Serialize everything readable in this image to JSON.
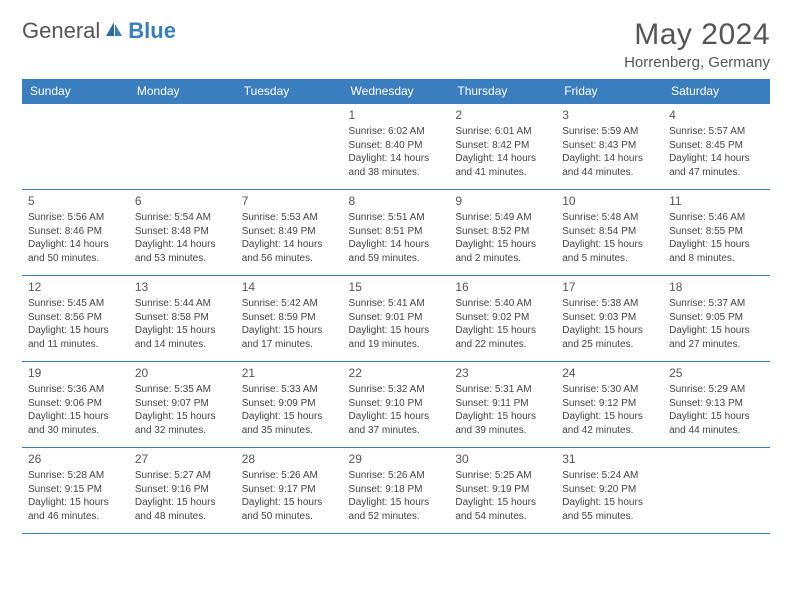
{
  "brand": {
    "word1": "General",
    "word2": "Blue"
  },
  "title": "May 2024",
  "location": "Horrenberg, Germany",
  "colors": {
    "accent": "#3a7ebf",
    "text": "#555555",
    "bg": "#ffffff"
  },
  "weekdays": [
    "Sunday",
    "Monday",
    "Tuesday",
    "Wednesday",
    "Thursday",
    "Friday",
    "Saturday"
  ],
  "grid": {
    "cols": 7,
    "rows": 5,
    "first_weekday_index": 3,
    "days_in_month": 31
  },
  "days": [
    {
      "n": 1,
      "sunrise": "6:02 AM",
      "sunset": "8:40 PM",
      "dl_h": 14,
      "dl_m": 38
    },
    {
      "n": 2,
      "sunrise": "6:01 AM",
      "sunset": "8:42 PM",
      "dl_h": 14,
      "dl_m": 41
    },
    {
      "n": 3,
      "sunrise": "5:59 AM",
      "sunset": "8:43 PM",
      "dl_h": 14,
      "dl_m": 44
    },
    {
      "n": 4,
      "sunrise": "5:57 AM",
      "sunset": "8:45 PM",
      "dl_h": 14,
      "dl_m": 47
    },
    {
      "n": 5,
      "sunrise": "5:56 AM",
      "sunset": "8:46 PM",
      "dl_h": 14,
      "dl_m": 50
    },
    {
      "n": 6,
      "sunrise": "5:54 AM",
      "sunset": "8:48 PM",
      "dl_h": 14,
      "dl_m": 53
    },
    {
      "n": 7,
      "sunrise": "5:53 AM",
      "sunset": "8:49 PM",
      "dl_h": 14,
      "dl_m": 56
    },
    {
      "n": 8,
      "sunrise": "5:51 AM",
      "sunset": "8:51 PM",
      "dl_h": 14,
      "dl_m": 59
    },
    {
      "n": 9,
      "sunrise": "5:49 AM",
      "sunset": "8:52 PM",
      "dl_h": 15,
      "dl_m": 2
    },
    {
      "n": 10,
      "sunrise": "5:48 AM",
      "sunset": "8:54 PM",
      "dl_h": 15,
      "dl_m": 5
    },
    {
      "n": 11,
      "sunrise": "5:46 AM",
      "sunset": "8:55 PM",
      "dl_h": 15,
      "dl_m": 8
    },
    {
      "n": 12,
      "sunrise": "5:45 AM",
      "sunset": "8:56 PM",
      "dl_h": 15,
      "dl_m": 11
    },
    {
      "n": 13,
      "sunrise": "5:44 AM",
      "sunset": "8:58 PM",
      "dl_h": 15,
      "dl_m": 14
    },
    {
      "n": 14,
      "sunrise": "5:42 AM",
      "sunset": "8:59 PM",
      "dl_h": 15,
      "dl_m": 17
    },
    {
      "n": 15,
      "sunrise": "5:41 AM",
      "sunset": "9:01 PM",
      "dl_h": 15,
      "dl_m": 19
    },
    {
      "n": 16,
      "sunrise": "5:40 AM",
      "sunset": "9:02 PM",
      "dl_h": 15,
      "dl_m": 22
    },
    {
      "n": 17,
      "sunrise": "5:38 AM",
      "sunset": "9:03 PM",
      "dl_h": 15,
      "dl_m": 25
    },
    {
      "n": 18,
      "sunrise": "5:37 AM",
      "sunset": "9:05 PM",
      "dl_h": 15,
      "dl_m": 27
    },
    {
      "n": 19,
      "sunrise": "5:36 AM",
      "sunset": "9:06 PM",
      "dl_h": 15,
      "dl_m": 30
    },
    {
      "n": 20,
      "sunrise": "5:35 AM",
      "sunset": "9:07 PM",
      "dl_h": 15,
      "dl_m": 32
    },
    {
      "n": 21,
      "sunrise": "5:33 AM",
      "sunset": "9:09 PM",
      "dl_h": 15,
      "dl_m": 35
    },
    {
      "n": 22,
      "sunrise": "5:32 AM",
      "sunset": "9:10 PM",
      "dl_h": 15,
      "dl_m": 37
    },
    {
      "n": 23,
      "sunrise": "5:31 AM",
      "sunset": "9:11 PM",
      "dl_h": 15,
      "dl_m": 39
    },
    {
      "n": 24,
      "sunrise": "5:30 AM",
      "sunset": "9:12 PM",
      "dl_h": 15,
      "dl_m": 42
    },
    {
      "n": 25,
      "sunrise": "5:29 AM",
      "sunset": "9:13 PM",
      "dl_h": 15,
      "dl_m": 44
    },
    {
      "n": 26,
      "sunrise": "5:28 AM",
      "sunset": "9:15 PM",
      "dl_h": 15,
      "dl_m": 46
    },
    {
      "n": 27,
      "sunrise": "5:27 AM",
      "sunset": "9:16 PM",
      "dl_h": 15,
      "dl_m": 48
    },
    {
      "n": 28,
      "sunrise": "5:26 AM",
      "sunset": "9:17 PM",
      "dl_h": 15,
      "dl_m": 50
    },
    {
      "n": 29,
      "sunrise": "5:26 AM",
      "sunset": "9:18 PM",
      "dl_h": 15,
      "dl_m": 52
    },
    {
      "n": 30,
      "sunrise": "5:25 AM",
      "sunset": "9:19 PM",
      "dl_h": 15,
      "dl_m": 54
    },
    {
      "n": 31,
      "sunrise": "5:24 AM",
      "sunset": "9:20 PM",
      "dl_h": 15,
      "dl_m": 55
    }
  ],
  "labels": {
    "sunrise": "Sunrise:",
    "sunset": "Sunset:",
    "daylight": "Daylight:",
    "hours": "hours",
    "and": "and",
    "minutes": "minutes."
  }
}
